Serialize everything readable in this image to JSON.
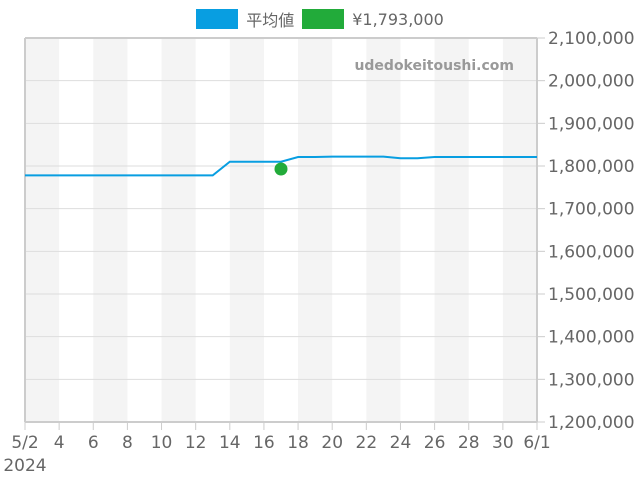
{
  "legend": {
    "items": [
      {
        "label": "平均値",
        "color": "#089ee1"
      },
      {
        "label": "¥1,793,000",
        "color": "#22ab3a"
      }
    ]
  },
  "watermark": "udedokeitoushi.com",
  "chart_data": {
    "type": "line",
    "title": "",
    "xlabel": "",
    "ylabel": "",
    "x_ticks": [
      "5/2",
      "4",
      "6",
      "8",
      "10",
      "12",
      "14",
      "16",
      "18",
      "20",
      "22",
      "24",
      "26",
      "28",
      "30",
      "6/1"
    ],
    "x_year_label": "2024",
    "y_ticks": [
      "1,200,000",
      "1,300,000",
      "1,400,000",
      "1,500,000",
      "1,600,000",
      "1,700,000",
      "1,800,000",
      "1,900,000",
      "2,000,000",
      "2,100,000"
    ],
    "ylim": [
      1200000,
      2100000
    ],
    "y_axis_position": "right",
    "grid": true,
    "legend_position": "top",
    "series": [
      {
        "name": "平均値",
        "color": "#089ee1",
        "x": [
          "5/2",
          "5/3",
          "5/4",
          "5/5",
          "5/6",
          "5/7",
          "5/8",
          "5/9",
          "5/10",
          "5/11",
          "5/12",
          "5/13",
          "5/14",
          "5/15",
          "5/16",
          "5/17",
          "5/18",
          "5/19",
          "5/20",
          "5/21",
          "5/22",
          "5/23",
          "5/24",
          "5/25",
          "5/26",
          "5/27",
          "5/28",
          "5/29",
          "5/30",
          "5/31",
          "6/1"
        ],
        "values": [
          1778000,
          1778000,
          1778000,
          1778000,
          1778000,
          1778000,
          1778000,
          1778000,
          1778000,
          1778000,
          1778000,
          1778000,
          1810000,
          1810000,
          1810000,
          1810000,
          1821000,
          1821000,
          1822000,
          1822000,
          1822000,
          1822000,
          1818000,
          1818000,
          1821000,
          1821000,
          1821000,
          1821000,
          1821000,
          1821000,
          1821000
        ]
      },
      {
        "name": "¥1,793,000",
        "color": "#22ab3a",
        "type": "scatter",
        "x": [
          "5/17"
        ],
        "values": [
          1793000
        ]
      }
    ]
  }
}
